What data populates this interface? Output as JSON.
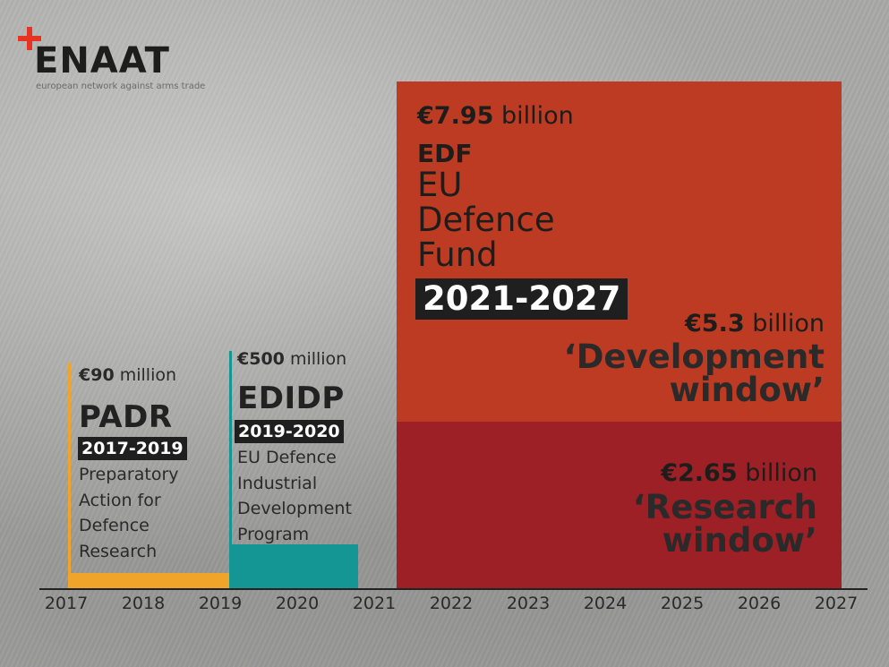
{
  "logo": {
    "name": "ENAAT",
    "tagline": "european network against arms trade",
    "accent_color": "#e63322"
  },
  "chart_data": {
    "type": "bar",
    "x_axis": {
      "ticks": [
        "2017",
        "2018",
        "2019",
        "2020",
        "2021",
        "2022",
        "2023",
        "2024",
        "2025",
        "2026",
        "2027"
      ]
    },
    "programmes": [
      {
        "acronym": "PADR",
        "amount_value": "€90",
        "amount_unit": "million",
        "years": "2017-2019",
        "name_lines": [
          "Preparatory",
          "Action for",
          "Defence",
          "Research"
        ],
        "start_year": 2017,
        "end_year": 2019,
        "amount_eur_million": 90,
        "color": "#f0a52a"
      },
      {
        "acronym": "EDIDP",
        "amount_value": "€500",
        "amount_unit": "million",
        "years": "2019-2020",
        "name_lines": [
          "EU Defence",
          "Industrial",
          "Development",
          "Program"
        ],
        "start_year": 2019,
        "end_year": 2020,
        "amount_eur_million": 500,
        "color": "#149694"
      },
      {
        "acronym": "EDF",
        "amount_value": "€7.95",
        "amount_unit": "billion",
        "years": "2021-2027",
        "name_lines": [
          "EU",
          "Defence",
          "Fund"
        ],
        "start_year": 2021,
        "end_year": 2027,
        "amount_eur_million": 7950,
        "windows": [
          {
            "amount_value": "€5.3",
            "amount_unit": "billion",
            "name_lines": [
              "‘Development",
              "window’"
            ],
            "amount_eur_million": 5300,
            "color": "#bc3b22"
          },
          {
            "amount_value": "€2.65",
            "amount_unit": "billion",
            "name_lines": [
              "‘Research",
              "window’"
            ],
            "amount_eur_million": 2650,
            "color": "#9c2025"
          }
        ]
      }
    ]
  }
}
